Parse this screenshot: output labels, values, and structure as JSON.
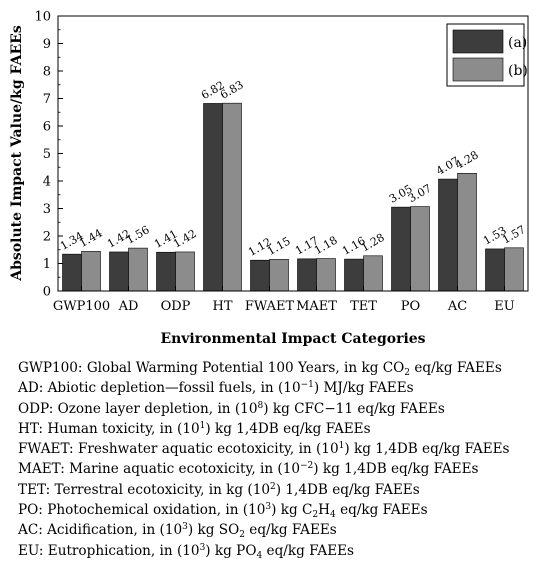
{
  "chart_data": {
    "type": "bar",
    "categories": [
      "GWP100",
      "AD",
      "ODP",
      "HT",
      "FWAET",
      "MAET",
      "TET",
      "PO",
      "AC",
      "EU"
    ],
    "series": [
      {
        "name": "(a)",
        "color": "#3d3d3d",
        "values": [
          1.34,
          1.42,
          1.41,
          6.82,
          1.12,
          1.17,
          1.16,
          3.05,
          4.07,
          1.53
        ]
      },
      {
        "name": "(b)",
        "color": "#8c8c8c",
        "values": [
          1.44,
          1.56,
          1.42,
          6.83,
          1.15,
          1.18,
          1.28,
          3.07,
          4.28,
          1.57
        ]
      }
    ],
    "value_labels": [
      [
        "1.34",
        "1.42",
        "1.41",
        "6.82",
        "1.12",
        "1.17",
        "1.16",
        "3.05",
        "4.07",
        "1.53"
      ],
      [
        "1.44",
        "1.56",
        "1.42",
        "6.83",
        "1.15",
        "1.18",
        "1.28",
        "3.07",
        "4.28",
        "1.57"
      ]
    ],
    "xlabel": "Environmental Impact Categories",
    "ylabel": "Absolute Impact Value/kg FAEEs",
    "ylim": [
      0,
      10
    ],
    "yticks": [
      0,
      1,
      2,
      3,
      4,
      5,
      6,
      7,
      8,
      9,
      10
    ],
    "grid": false,
    "legend_position": "top-right"
  },
  "notes": [
    {
      "name": "GWP100",
      "parts": [
        [
          "t",
          "GWP100: Global Warming Potential 100 Years, in kg CO"
        ],
        [
          "sub",
          "2"
        ],
        [
          "t",
          " eq/kg FAEEs"
        ]
      ]
    },
    {
      "name": "AD",
      "parts": [
        [
          "t",
          "AD: Abiotic depletion—fossil fuels, in (10"
        ],
        [
          "sup",
          "−1"
        ],
        [
          "t",
          ") MJ/kg FAEEs"
        ]
      ]
    },
    {
      "name": "ODP",
      "parts": [
        [
          "t",
          "ODP: Ozone layer depletion, in (10"
        ],
        [
          "sup",
          "8"
        ],
        [
          "t",
          ") kg CFC−11 eq/kg FAEEs"
        ]
      ]
    },
    {
      "name": "HT",
      "parts": [
        [
          "t",
          "HT: Human toxicity, in (10"
        ],
        [
          "sup",
          "1"
        ],
        [
          "t",
          ") kg 1,4DB eq/kg FAEEs"
        ]
      ]
    },
    {
      "name": "FWAET",
      "parts": [
        [
          "t",
          "FWAET: Freshwater aquatic ecotoxicity, in (10"
        ],
        [
          "sup",
          "1"
        ],
        [
          "t",
          ") kg 1,4DB eq/kg FAEEs"
        ]
      ]
    },
    {
      "name": "MAET",
      "parts": [
        [
          "t",
          "MAET: Marine aquatic ecotoxicity, in (10"
        ],
        [
          "sup",
          "−2"
        ],
        [
          "t",
          ") kg 1,4DB eq/kg FAEEs"
        ]
      ]
    },
    {
      "name": "TET",
      "parts": [
        [
          "t",
          "TET: Terrestral ecotoxicity, in kg (10"
        ],
        [
          "sup",
          "2"
        ],
        [
          "t",
          ") 1,4DB eq/kg FAEEs"
        ]
      ]
    },
    {
      "name": "PO",
      "parts": [
        [
          "t",
          "PO: Photochemical oxidation, in (10"
        ],
        [
          "sup",
          "3"
        ],
        [
          "t",
          ") kg C"
        ],
        [
          "sub",
          "2"
        ],
        [
          "t",
          "H"
        ],
        [
          "sub",
          "4"
        ],
        [
          "t",
          " eq/kg FAEEs"
        ]
      ]
    },
    {
      "name": "AC",
      "parts": [
        [
          "t",
          "AC: Acidification, in (10"
        ],
        [
          "sup",
          "3"
        ],
        [
          "t",
          ") kg SO"
        ],
        [
          "sub",
          "2"
        ],
        [
          "t",
          " eq/kg FAEEs"
        ]
      ]
    },
    {
      "name": "EU",
      "parts": [
        [
          "t",
          "EU: Eutrophication, in (10"
        ],
        [
          "sup",
          "3"
        ],
        [
          "t",
          ") kg PO"
        ],
        [
          "sub",
          "4"
        ],
        [
          "t",
          " eq/kg FAEEs"
        ]
      ]
    }
  ]
}
